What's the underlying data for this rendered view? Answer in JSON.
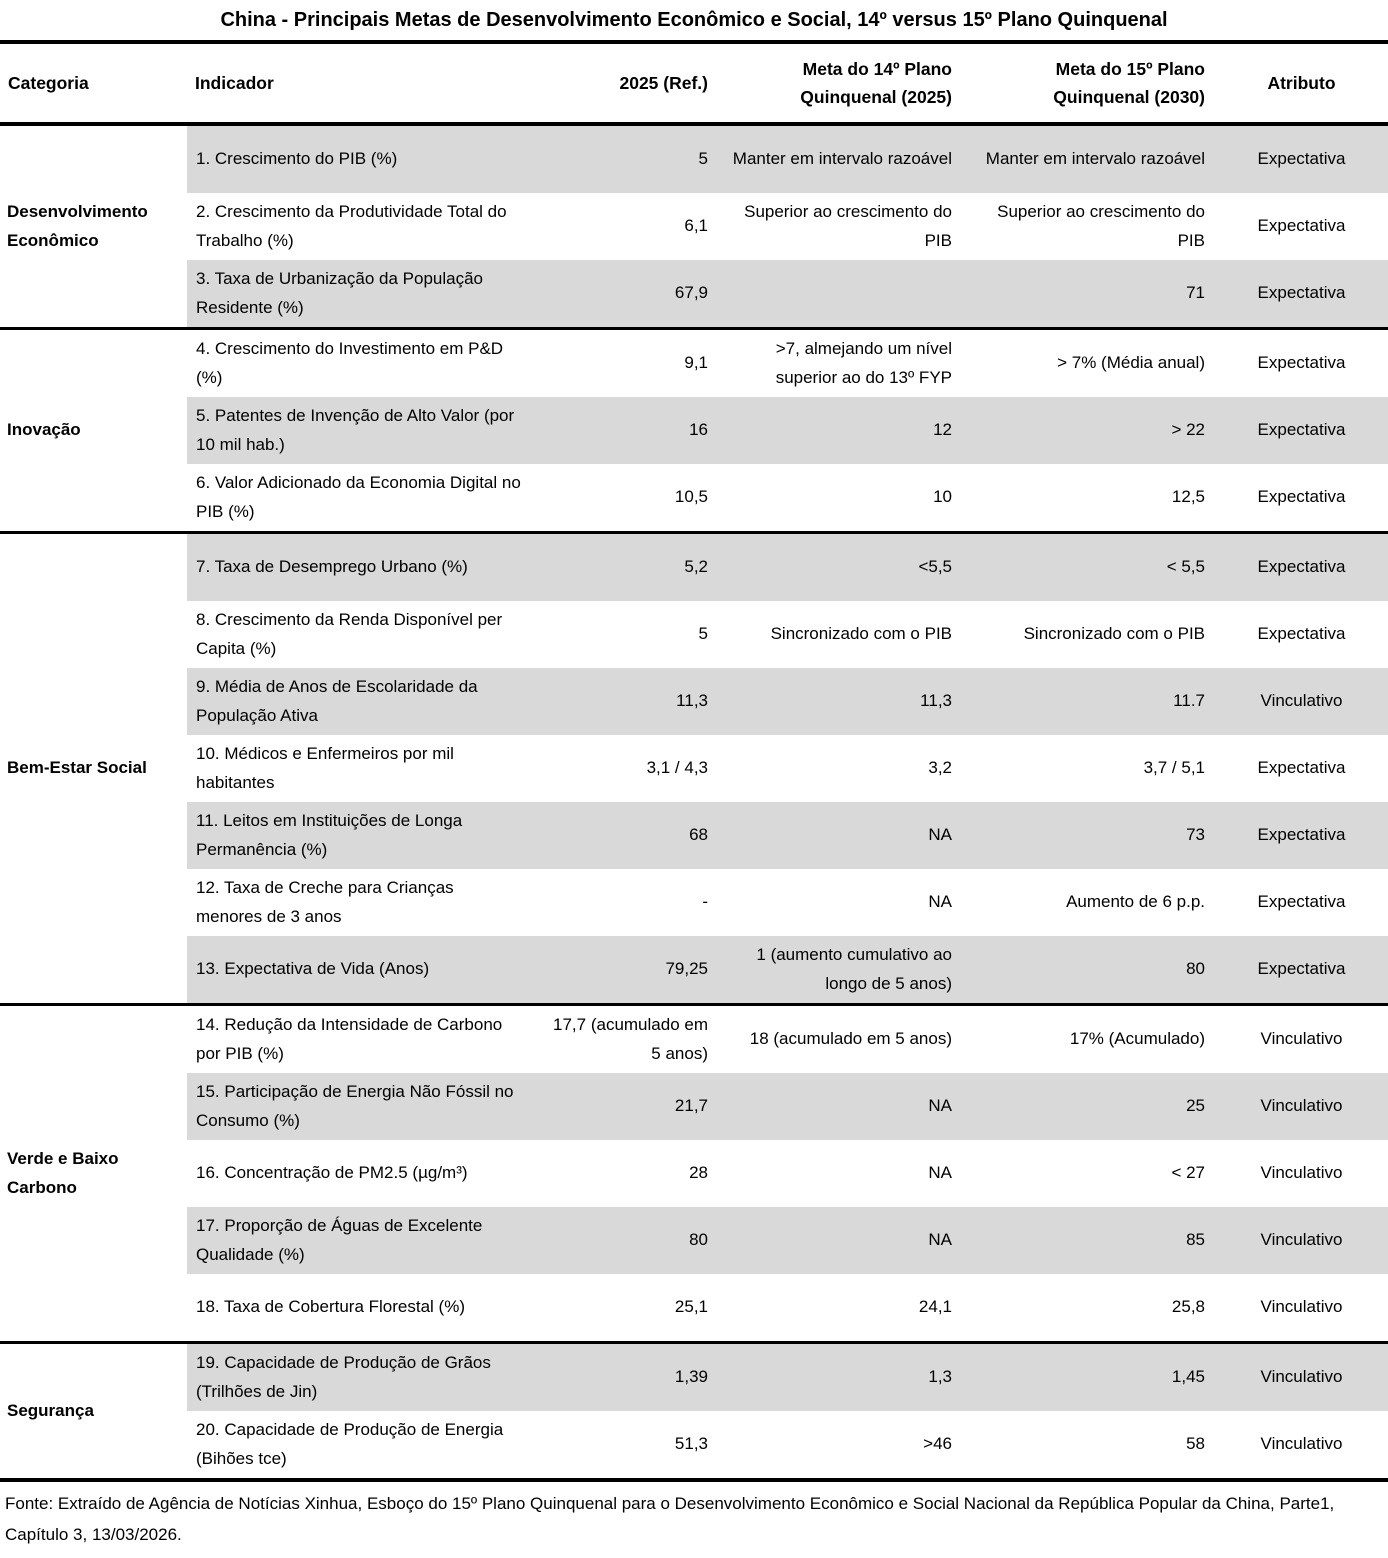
{
  "title": "China - Principais Metas de Desenvolvimento Econômico e Social, 14º versus 15º Plano Quinquenal",
  "header": {
    "categoria": "Categoria",
    "indicador": "Indicador",
    "ref": "2025 (Ref.)",
    "meta14": "Meta do 14º Plano Quinquenal (2025)",
    "meta15": "Meta do 15º Plano Quinquenal (2030)",
    "atributo": "Atributo"
  },
  "groups": [
    {
      "category": "Desenvolvimento Econômico",
      "rows": [
        {
          "indicator": "1. Crescimento do PIB (%)",
          "ref": "5",
          "meta14": "Manter em intervalo razoável",
          "meta15": "Manter em intervalo razoável",
          "attribute": "Expectativa",
          "shaded": true
        },
        {
          "indicator": "2. Crescimento da Produtividade Total do Trabalho (%)",
          "ref": "6,1",
          "meta14": "Superior ao crescimento do PIB",
          "meta15": "Superior ao crescimento do PIB",
          "attribute": "Expectativa",
          "shaded": false
        },
        {
          "indicator": "3. Taxa de Urbanização da População Residente (%)",
          "ref": "67,9",
          "meta14": "",
          "meta15": "71",
          "attribute": "Expectativa",
          "shaded": true
        }
      ]
    },
    {
      "category": "Inovação",
      "rows": [
        {
          "indicator": "4. Crescimento do Investimento em P&D (%)",
          "ref": "9,1",
          "meta14": ">7, almejando um nível superior ao do 13º FYP",
          "meta15": "> 7% (Média anual)",
          "attribute": "Expectativa",
          "shaded": false
        },
        {
          "indicator": "5. Patentes de Invenção de Alto Valor (por 10 mil hab.)",
          "ref": "16",
          "meta14": "12",
          "meta15": "> 22",
          "attribute": "Expectativa",
          "shaded": true
        },
        {
          "indicator": "6. Valor Adicionado da Economia Digital no PIB (%)",
          "ref": "10,5",
          "meta14": "10",
          "meta15": "12,5",
          "attribute": "Expectativa",
          "shaded": false
        }
      ]
    },
    {
      "category": "Bem-Estar Social",
      "rows": [
        {
          "indicator": "7. Taxa de Desemprego Urbano (%)",
          "ref": "5,2",
          "meta14": "<5,5",
          "meta15": "< 5,5",
          "attribute": "Expectativa",
          "shaded": true
        },
        {
          "indicator": "8. Crescimento da Renda Disponível per Capita (%)",
          "ref": "5",
          "meta14": "Sincronizado com o PIB",
          "meta15": "Sincronizado com o PIB",
          "attribute": "Expectativa",
          "shaded": false
        },
        {
          "indicator": "9. Média de Anos de Escolaridade da População Ativa",
          "ref": "11,3",
          "meta14": "11,3",
          "meta15": "11.7",
          "attribute": "Vinculativo",
          "shaded": true
        },
        {
          "indicator": "10. Médicos e Enfermeiros por mil habitantes",
          "ref": "3,1 / 4,3",
          "meta14": "3,2",
          "meta15": "3,7 / 5,1",
          "attribute": "Expectativa",
          "shaded": false
        },
        {
          "indicator": "11. Leitos em Instituições de Longa Permanência (%)",
          "ref": "68",
          "meta14": "NA",
          "meta15": "73",
          "attribute": "Expectativa",
          "shaded": true
        },
        {
          "indicator": "12. Taxa de Creche para Crianças menores de 3 anos",
          "ref": "-",
          "meta14": "NA",
          "meta15": "Aumento de 6 p.p.",
          "attribute": "Expectativa",
          "shaded": false
        },
        {
          "indicator": "13. Expectativa de Vida (Anos)",
          "ref": "79,25",
          "meta14": "1 (aumento cumulativo ao longo de 5 anos)",
          "meta15": "80",
          "attribute": "Expectativa",
          "shaded": true
        }
      ]
    },
    {
      "category": "Verde e Baixo Carbono",
      "rows": [
        {
          "indicator": "14. Redução da Intensidade de Carbono por PIB (%)",
          "ref": "17,7 (acumulado em 5 anos)",
          "meta14": "18 (acumulado em 5 anos)",
          "meta15": "17% (Acumulado)",
          "attribute": "Vinculativo",
          "shaded": false
        },
        {
          "indicator": "15. Participação de Energia Não Fóssil no Consumo (%)",
          "ref": "21,7",
          "meta14": "NA",
          "meta15": "25",
          "attribute": "Vinculativo",
          "shaded": true
        },
        {
          "indicator": "16. Concentração de PM2.5 (µg/m³)",
          "ref": "28",
          "meta14": "NA",
          "meta15": "< 27",
          "attribute": "Vinculativo",
          "shaded": false
        },
        {
          "indicator": "17. Proporção de Águas de Excelente Qualidade (%)",
          "ref": "80",
          "meta14": "NA",
          "meta15": "85",
          "attribute": "Vinculativo",
          "shaded": true
        },
        {
          "indicator": "18. Taxa de Cobertura Florestal (%)",
          "ref": "25,1",
          "meta14": "24,1",
          "meta15": "25,8",
          "attribute": "Vinculativo",
          "shaded": false
        }
      ]
    },
    {
      "category": "Segurança",
      "rows": [
        {
          "indicator": "19. Capacidade de Produção de Grãos (Trilhões de Jin)",
          "ref": "1,39",
          "meta14": "1,3",
          "meta15": "1,45",
          "attribute": "Vinculativo",
          "shaded": true
        },
        {
          "indicator": "20. Capacidade de Produção de Energia (Bihões tce)",
          "ref": "51,3",
          "meta14": ">46",
          "meta15": "58",
          "attribute": "Vinculativo",
          "shaded": false
        }
      ]
    }
  ],
  "footer": "Fonte: Extraído de Agência de Notícias Xinhua, Esboço do 15º Plano Quinquenal para o Desenvolvimento Econômico e Social Nacional da República Popular da China, Parte1, Capítulo 3, 13/03/2026.",
  "colors": {
    "stripe": "#d9d9d9",
    "line": "#000000",
    "text": "#000000",
    "background": "#ffffff"
  }
}
